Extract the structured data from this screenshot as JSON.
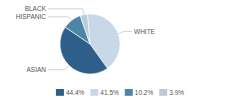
{
  "chart_data": {
    "type": "pie",
    "categories": [
      "WHITE",
      "ASIAN",
      "HISPANIC",
      "BLACK"
    ],
    "values": [
      41.5,
      44.4,
      10.2,
      3.9
    ],
    "colors": [
      "#c8d8e8",
      "#2e5f8a",
      "#4d85a8",
      "#b8cdd8"
    ],
    "legend": "bottom",
    "legend_entries": [
      {
        "label": "44.4%",
        "color": "#2e5f8a"
      },
      {
        "label": "41.5%",
        "color": "#c8d8e8"
      },
      {
        "label": "10.2%",
        "color": "#4d85a8"
      },
      {
        "label": "3.9%",
        "color": "#b8cdd8"
      }
    ]
  }
}
